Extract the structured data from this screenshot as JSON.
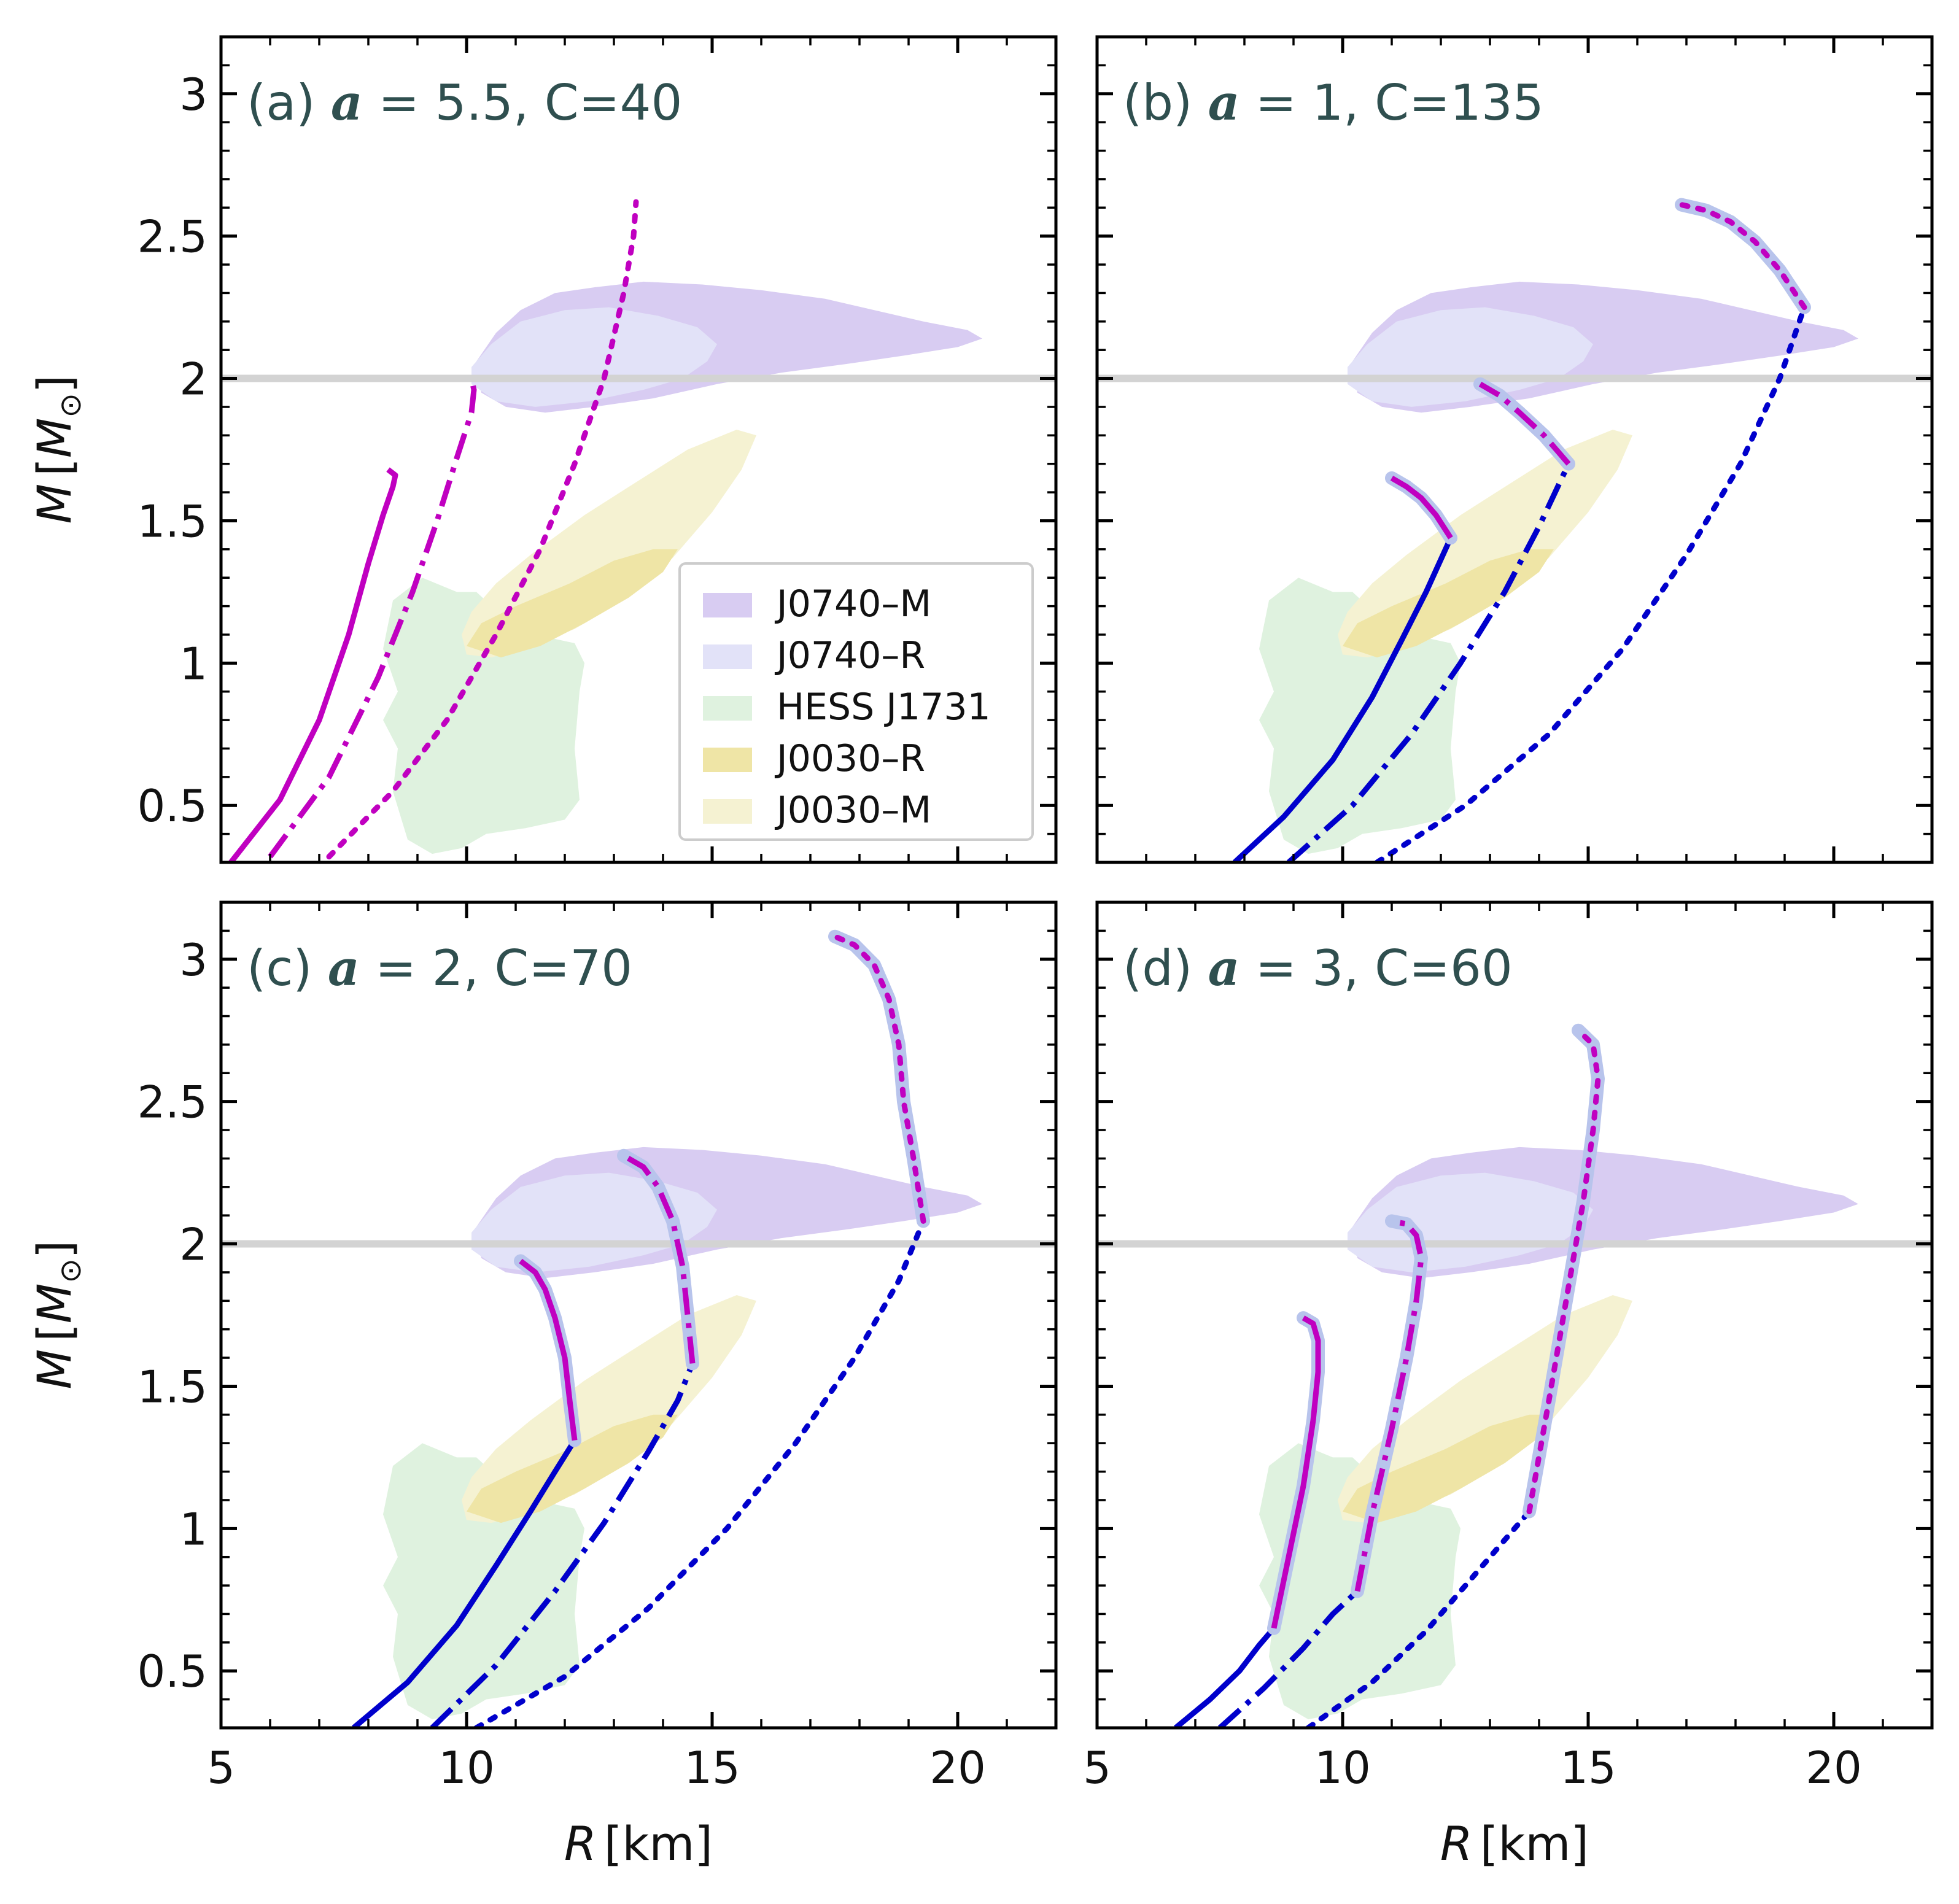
{
  "figure": {
    "x_axis_label": {
      "var": "R",
      "unit": "[km]"
    },
    "y_axis_label": {
      "var": "M",
      "unit_open": "[",
      "unit_sym": "M",
      "unit_sub": "⊙",
      "unit_close": "]"
    }
  },
  "legend": {
    "placement": "lower-right of panel (a)",
    "entries": [
      {
        "name": "J0740–M",
        "color": "#d8ccf2"
      },
      {
        "name": "J0740–R",
        "color": "#e2e2f8"
      },
      {
        "name": "HESS J1731",
        "color": "#dff2df"
      },
      {
        "name": "J0030–R",
        "color": "#efe5a6"
      },
      {
        "name": "J0030–M",
        "color": "#f5f2d2"
      }
    ]
  },
  "colors": {
    "hadronic": "#0000cc",
    "quark": "#c000c0",
    "halo": "#b8c4ec",
    "reference_line": "#d3d3d3"
  },
  "chart_data": [
    {
      "type": "line",
      "panel": "a",
      "label": {
        "prefix": "(a) ",
        "symbol": "a",
        "rest": " = 5.5, C=40"
      },
      "xlim": [
        5,
        22
      ],
      "ylim": [
        0.3,
        3.2
      ],
      "xticks": [
        5,
        10,
        15,
        20
      ],
      "yticks": [
        0.5,
        1.0,
        1.5,
        2.0,
        2.5,
        3.0
      ],
      "hline": 2.0,
      "series": [
        {
          "style": "solid",
          "color": "quark",
          "halo": false,
          "x": [
            5.2,
            6.2,
            7.0,
            7.6,
            8.0,
            8.3,
            8.5,
            8.55,
            8.4
          ],
          "y": [
            0.3,
            0.52,
            0.8,
            1.1,
            1.35,
            1.52,
            1.62,
            1.66,
            1.68
          ]
        },
        {
          "style": "dashdot",
          "color": "quark",
          "halo": false,
          "x": [
            6.0,
            7.2,
            8.2,
            8.9,
            9.4,
            9.8,
            10.1,
            10.15,
            10.1
          ],
          "y": [
            0.32,
            0.6,
            0.95,
            1.25,
            1.5,
            1.72,
            1.88,
            1.96,
            2.0
          ]
        },
        {
          "style": "dotted",
          "color": "quark",
          "halo": false,
          "x": [
            7.2,
            8.5,
            9.6,
            10.6,
            11.5,
            12.2,
            12.8,
            13.2,
            13.4,
            13.45
          ],
          "y": [
            0.32,
            0.55,
            0.8,
            1.1,
            1.4,
            1.7,
            2.0,
            2.3,
            2.5,
            2.62
          ]
        }
      ]
    },
    {
      "type": "line",
      "panel": "b",
      "label": {
        "prefix": "(b) ",
        "symbol": "a",
        "rest": " = 1, C=135"
      },
      "xlim": [
        5,
        22
      ],
      "ylim": [
        0.3,
        3.2
      ],
      "xticks": [
        5,
        10,
        15,
        20
      ],
      "yticks": [
        0.5,
        1.0,
        1.5,
        2.0,
        2.5,
        3.0
      ],
      "hline": 2.0,
      "series": [
        {
          "style": "solid",
          "color": "hadronic",
          "halo": false,
          "x": [
            7.8,
            8.8,
            9.8,
            10.6,
            11.2,
            11.7,
            12.2
          ],
          "y": [
            0.3,
            0.46,
            0.66,
            0.88,
            1.08,
            1.25,
            1.44
          ]
        },
        {
          "style": "solid",
          "color": "quark",
          "halo": true,
          "x": [
            12.2,
            11.9,
            11.6,
            11.3,
            11.0
          ],
          "y": [
            1.44,
            1.52,
            1.58,
            1.62,
            1.65
          ]
        },
        {
          "style": "dashdot",
          "color": "hadronic",
          "halo": false,
          "x": [
            8.9,
            10.2,
            11.4,
            12.4,
            13.3,
            14.0,
            14.6
          ],
          "y": [
            0.3,
            0.5,
            0.75,
            1.0,
            1.25,
            1.48,
            1.7
          ]
        },
        {
          "style": "dashdot",
          "color": "quark",
          "halo": true,
          "x": [
            14.6,
            14.1,
            13.6,
            13.2,
            12.8
          ],
          "y": [
            1.7,
            1.8,
            1.88,
            1.94,
            1.98
          ]
        },
        {
          "style": "dotted",
          "color": "hadronic",
          "halo": false,
          "x": [
            10.7,
            12.5,
            14.2,
            15.7,
            17.0,
            18.1,
            18.9,
            19.4
          ],
          "y": [
            0.3,
            0.5,
            0.75,
            1.05,
            1.38,
            1.7,
            2.0,
            2.25
          ]
        },
        {
          "style": "dotted",
          "color": "quark",
          "halo": true,
          "x": [
            19.4,
            18.9,
            18.4,
            17.9,
            17.4,
            16.9
          ],
          "y": [
            2.25,
            2.38,
            2.48,
            2.55,
            2.59,
            2.61
          ]
        }
      ]
    },
    {
      "type": "line",
      "panel": "c",
      "label": {
        "prefix": "(c) ",
        "symbol": "a",
        "rest": " = 2, C=70"
      },
      "xlim": [
        5,
        22
      ],
      "ylim": [
        0.3,
        3.2
      ],
      "xticks": [
        5,
        10,
        15,
        20
      ],
      "yticks": [
        0.5,
        1.0,
        1.5,
        2.0,
        2.5,
        3.0
      ],
      "hline": 2.0,
      "series": [
        {
          "style": "solid",
          "color": "hadronic",
          "halo": false,
          "x": [
            7.7,
            8.8,
            9.8,
            10.6,
            11.3,
            11.8,
            12.2
          ],
          "y": [
            0.3,
            0.46,
            0.66,
            0.87,
            1.06,
            1.2,
            1.31
          ]
        },
        {
          "style": "solid",
          "color": "quark",
          "halo": true,
          "x": [
            12.2,
            12.1,
            12.0,
            11.8,
            11.6,
            11.4,
            11.1
          ],
          "y": [
            1.31,
            1.45,
            1.6,
            1.74,
            1.84,
            1.9,
            1.94
          ]
        },
        {
          "style": "dashdot",
          "color": "hadronic",
          "halo": false,
          "x": [
            9.3,
            10.6,
            11.8,
            12.8,
            13.7,
            14.3,
            14.6
          ],
          "y": [
            0.3,
            0.52,
            0.78,
            1.02,
            1.27,
            1.45,
            1.58
          ]
        },
        {
          "style": "dashdot",
          "color": "quark",
          "halo": true,
          "x": [
            14.6,
            14.5,
            14.4,
            14.2,
            13.9,
            13.6,
            13.2
          ],
          "y": [
            1.58,
            1.75,
            1.92,
            2.08,
            2.2,
            2.27,
            2.31
          ]
        },
        {
          "style": "dotted",
          "color": "hadronic",
          "halo": false,
          "x": [
            10.2,
            12.0,
            13.7,
            15.3,
            16.7,
            17.9,
            18.8,
            19.3
          ],
          "y": [
            0.3,
            0.48,
            0.72,
            1.0,
            1.3,
            1.6,
            1.87,
            2.08
          ]
        },
        {
          "style": "dotted",
          "color": "quark",
          "halo": true,
          "x": [
            19.3,
            19.1,
            18.9,
            18.8,
            18.6,
            18.3,
            17.9,
            17.5
          ],
          "y": [
            2.08,
            2.3,
            2.5,
            2.7,
            2.86,
            2.98,
            3.05,
            3.08
          ]
        }
      ]
    },
    {
      "type": "line",
      "panel": "d",
      "label": {
        "prefix": "(d) ",
        "symbol": "a",
        "rest": " = 3, C=60"
      },
      "xlim": [
        5,
        22
      ],
      "ylim": [
        0.3,
        3.2
      ],
      "xticks": [
        5,
        10,
        15,
        20
      ],
      "yticks": [
        0.5,
        1.0,
        1.5,
        2.0,
        2.5,
        3.0
      ],
      "hline": 2.0,
      "series": [
        {
          "style": "solid",
          "color": "hadronic",
          "halo": false,
          "x": [
            6.6,
            7.3,
            7.9,
            8.3,
            8.6
          ],
          "y": [
            0.3,
            0.4,
            0.5,
            0.59,
            0.65
          ]
        },
        {
          "style": "solid",
          "color": "quark",
          "halo": true,
          "x": [
            8.6,
            8.9,
            9.2,
            9.4,
            9.5,
            9.5,
            9.4,
            9.2
          ],
          "y": [
            0.65,
            0.9,
            1.15,
            1.38,
            1.55,
            1.66,
            1.72,
            1.74
          ]
        },
        {
          "style": "dashdot",
          "color": "hadronic",
          "halo": false,
          "x": [
            7.5,
            8.4,
            9.2,
            9.8,
            10.3
          ],
          "y": [
            0.3,
            0.44,
            0.58,
            0.7,
            0.78
          ]
        },
        {
          "style": "dashdot",
          "color": "quark",
          "halo": true,
          "x": [
            10.3,
            10.6,
            11.0,
            11.3,
            11.5,
            11.6,
            11.5,
            11.3,
            11.0
          ],
          "y": [
            0.78,
            1.05,
            1.35,
            1.6,
            1.8,
            1.95,
            2.03,
            2.07,
            2.08
          ]
        },
        {
          "style": "dotted",
          "color": "hadronic",
          "halo": false,
          "x": [
            9.3,
            10.6,
            11.7,
            12.7,
            13.4,
            13.8
          ],
          "y": [
            0.3,
            0.46,
            0.64,
            0.84,
            0.98,
            1.06
          ]
        },
        {
          "style": "dotted",
          "color": "quark",
          "halo": true,
          "x": [
            13.8,
            14.2,
            14.6,
            14.9,
            15.1,
            15.2,
            15.1,
            14.8
          ],
          "y": [
            1.06,
            1.45,
            1.85,
            2.15,
            2.4,
            2.58,
            2.7,
            2.75
          ]
        }
      ]
    }
  ]
}
